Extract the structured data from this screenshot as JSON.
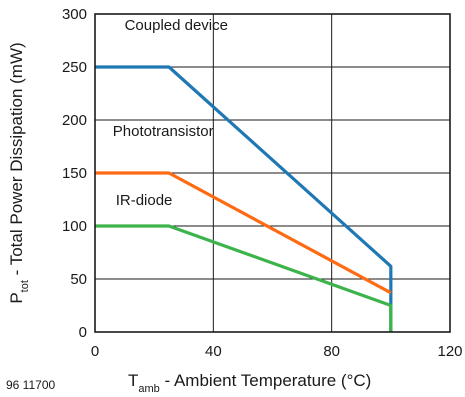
{
  "chart_data": {
    "type": "line",
    "figure_id": "96 11700",
    "ylabel": {
      "main": "P",
      "sub": "tot",
      "rest": " - Total Power Dissipation (mW)"
    },
    "xlabel": {
      "main": "T",
      "sub": "amb",
      "rest": " - Ambient Temperature (°C)"
    },
    "xlim": [
      0,
      120
    ],
    "ylim": [
      0,
      300
    ],
    "xticks": [
      0,
      40,
      80,
      120
    ],
    "yticks": [
      0,
      50,
      100,
      150,
      200,
      250,
      300
    ],
    "grid": true,
    "series": [
      {
        "name": "Coupled device",
        "color": "#1f77b4",
        "x": [
          0,
          25,
          100,
          100
        ],
        "y": [
          250,
          250,
          62,
          0
        ]
      },
      {
        "name": "Phototransistor",
        "color": "#ff6a13",
        "x": [
          0,
          25,
          100
        ],
        "y": [
          150,
          150,
          37
        ]
      },
      {
        "name": "IR-diode",
        "color": "#3cb44b",
        "x": [
          0,
          25,
          100,
          100
        ],
        "y": [
          100,
          100,
          25,
          0
        ]
      }
    ],
    "annotations": [
      {
        "text": "Coupled device",
        "x": 10,
        "y": 285
      },
      {
        "text": "Phototransistor",
        "x": 6,
        "y": 185
      },
      {
        "text": "IR-diode",
        "x": 7,
        "y": 120
      }
    ]
  }
}
